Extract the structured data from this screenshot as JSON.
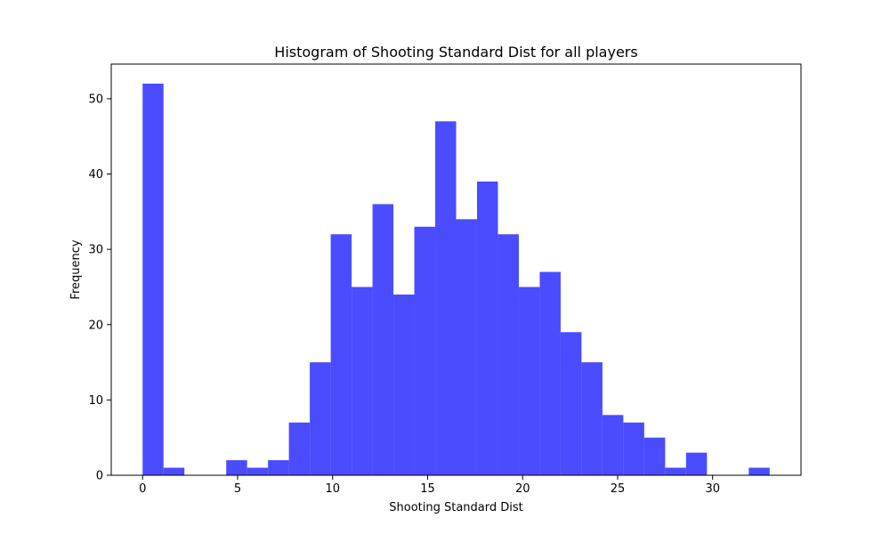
{
  "chart_data": {
    "type": "bar",
    "title": "Histogram of Shooting Standard Dist for all players",
    "xlabel": "Shooting Standard Dist",
    "ylabel": "Frequency",
    "bin_start": 0.0,
    "bin_width": 1.1,
    "values": [
      52,
      1,
      0,
      0,
      2,
      1,
      2,
      7,
      15,
      32,
      25,
      36,
      24,
      33,
      47,
      34,
      39,
      32,
      25,
      27,
      19,
      15,
      8,
      7,
      5,
      1,
      3,
      0,
      0,
      1
    ],
    "xlim": [
      -1.65,
      34.65
    ],
    "ylim": [
      0,
      54.6
    ],
    "xticks": [
      0,
      5,
      10,
      15,
      20,
      25,
      30
    ],
    "yticks": [
      0,
      10,
      20,
      30,
      40,
      50
    ],
    "bar_color": "#4b4bff",
    "grid": false,
    "legend": "none"
  }
}
